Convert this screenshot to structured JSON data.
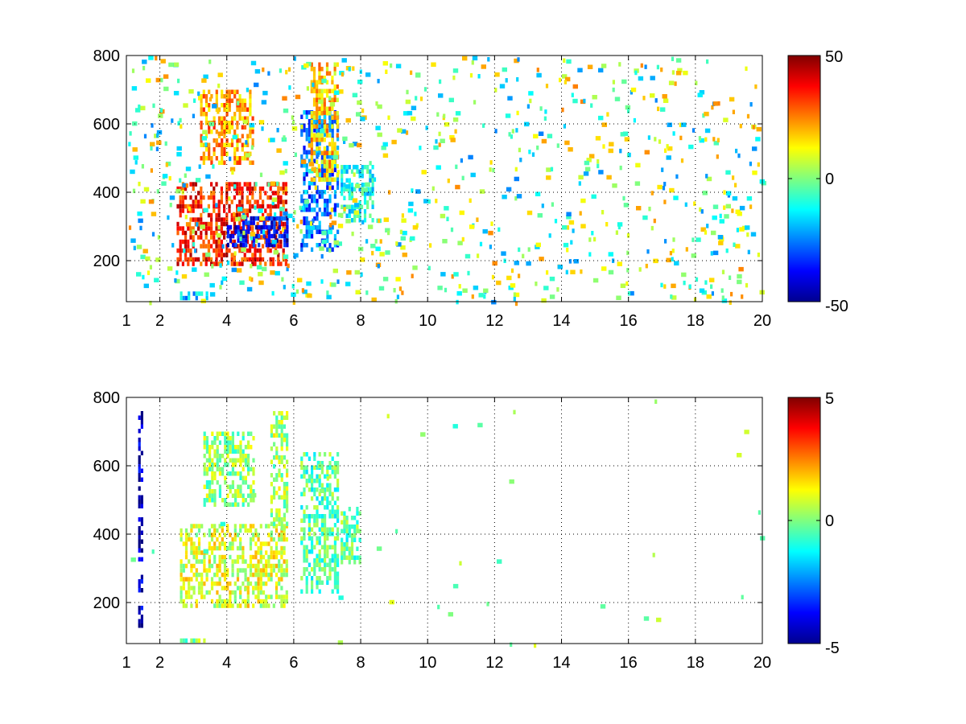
{
  "chart_data": [
    {
      "type": "heatmap",
      "title": "",
      "xlabel": "",
      "ylabel": "",
      "xlim": [
        1,
        20
      ],
      "ylim": [
        80,
        800
      ],
      "x_ticks": [
        1,
        2,
        4,
        6,
        8,
        10,
        12,
        14,
        16,
        18,
        20
      ],
      "y_ticks": [
        200,
        400,
        600,
        800
      ],
      "grid": true,
      "colorbar": {
        "range": [
          -50,
          50
        ],
        "ticks": [
          50,
          0,
          -50
        ],
        "colormap": "jet"
      },
      "features": [
        {
          "x": [
            2.5,
            5.8
          ],
          "y": [
            190,
            430
          ],
          "value": 35
        },
        {
          "x": [
            3.2,
            4.8
          ],
          "y": [
            480,
            700
          ],
          "value": 22
        },
        {
          "x": [
            4.0,
            5.8
          ],
          "y": [
            240,
            330
          ],
          "value": -38
        },
        {
          "x": [
            6.2,
            7.3
          ],
          "y": [
            230,
            640
          ],
          "value": -28
        },
        {
          "x": [
            6.5,
            7.3
          ],
          "y": [
            440,
            780
          ],
          "value": 18
        },
        {
          "x": [
            7.4,
            8.4
          ],
          "y": [
            320,
            480
          ],
          "value": -12
        },
        {
          "x": [
            2.6,
            3.4
          ],
          "y": [
            85,
            110
          ],
          "value": -18
        }
      ]
    },
    {
      "type": "heatmap",
      "title": "",
      "xlabel": "",
      "ylabel": "",
      "xlim": [
        1,
        20
      ],
      "ylim": [
        80,
        800
      ],
      "x_ticks": [
        1,
        2,
        4,
        6,
        8,
        10,
        12,
        14,
        16,
        18,
        20
      ],
      "y_ticks": [
        200,
        400,
        600,
        800
      ],
      "grid": true,
      "colorbar": {
        "range": [
          -5,
          5
        ],
        "ticks": [
          5,
          0,
          -5
        ],
        "colormap": "jet"
      },
      "features": [
        {
          "x": [
            2.6,
            5.8
          ],
          "y": [
            190,
            430
          ],
          "value": 0.9
        },
        {
          "x": [
            3.3,
            4.8
          ],
          "y": [
            480,
            700
          ],
          "value": 0.2
        },
        {
          "x": [
            5.3,
            5.8
          ],
          "y": [
            400,
            760
          ],
          "value": 0.4
        },
        {
          "x": [
            6.2,
            7.3
          ],
          "y": [
            230,
            640
          ],
          "value": -0.4
        },
        {
          "x": [
            7.4,
            8.0
          ],
          "y": [
            320,
            480
          ],
          "value": -0.3
        },
        {
          "x": [
            2.6,
            3.4
          ],
          "y": [
            85,
            95
          ],
          "value": 0.1
        },
        {
          "x": [
            1.35,
            1.45
          ],
          "y": [
            130,
            760
          ],
          "value": -4.5
        }
      ]
    }
  ]
}
